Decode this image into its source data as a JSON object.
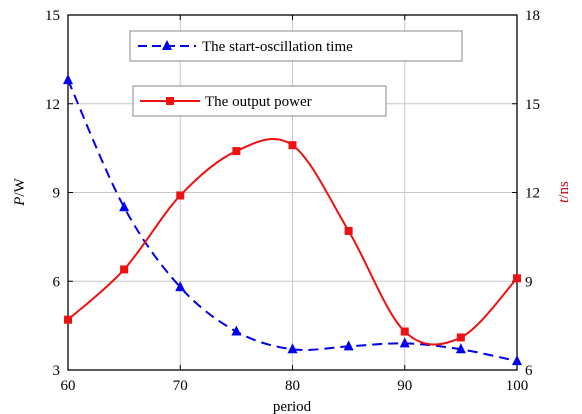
{
  "chart_data": {
    "type": "line",
    "x": [
      60,
      65,
      70,
      75,
      80,
      85,
      90,
      95,
      100
    ],
    "xlabel": "period",
    "xlim": [
      60,
      100
    ],
    "xticks": [
      60,
      70,
      80,
      90,
      100
    ],
    "ylabel_left": {
      "italic": "P",
      "unit": "/W"
    },
    "ylabel_right": {
      "italic": "t",
      "unit": "/ns"
    },
    "ylim_left": [
      3,
      15
    ],
    "yticks_left": [
      3,
      6,
      9,
      12,
      15
    ],
    "ylim_right": [
      6,
      18
    ],
    "yticks_right": [
      6,
      9,
      12,
      15,
      18
    ],
    "grid": true,
    "legend_placement": "top-center",
    "series": [
      {
        "name": "The start-oscillation time",
        "axis": "right",
        "color": "#0000ee",
        "line_style": "dashed",
        "marker": "triangle",
        "smooth": true,
        "values": [
          15.8,
          11.5,
          8.8,
          7.3,
          6.7,
          6.8,
          6.9,
          6.7,
          6.3
        ]
      },
      {
        "name": "The output power",
        "axis": "left",
        "color": "#ee1111",
        "line_style": "solid",
        "marker": "square",
        "smooth": true,
        "values": [
          4.7,
          6.4,
          8.9,
          10.4,
          10.6,
          7.7,
          4.3,
          4.1,
          6.1
        ]
      }
    ],
    "right_axis_label_color": "#cc0000"
  }
}
